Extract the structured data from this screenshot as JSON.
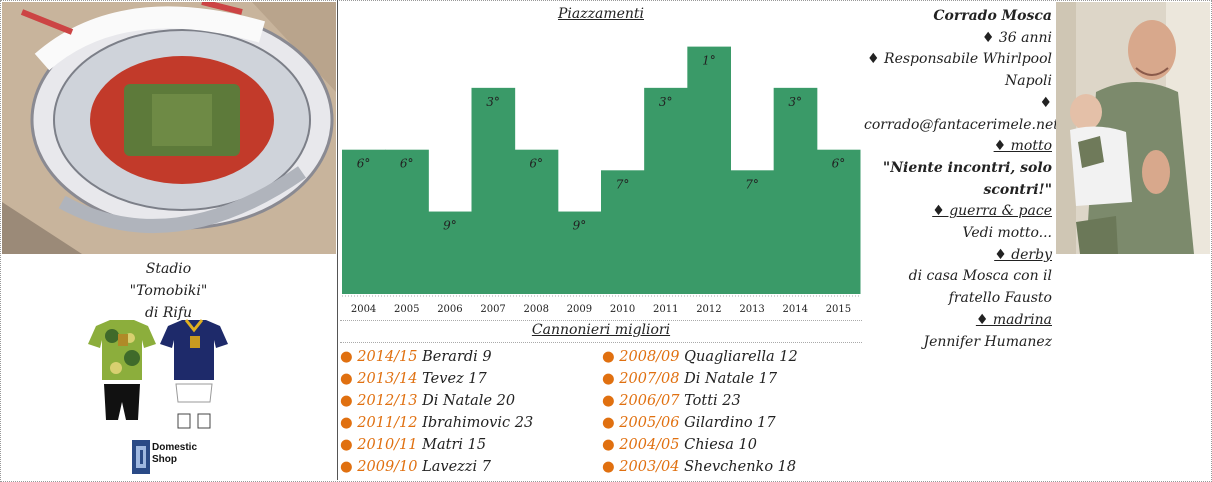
{
  "stadium": {
    "line1": "Stadio",
    "line2": "\"Tomobiki\"",
    "line3": "di Rifu"
  },
  "sponsor": {
    "line1": "Domestic",
    "line2": "Shop"
  },
  "chart_data": {
    "type": "bar",
    "title": "Piazzamenti",
    "categories": [
      "2004",
      "2005",
      "2006",
      "2007",
      "2008",
      "2009",
      "2010",
      "2011",
      "2012",
      "2013",
      "2014",
      "2015"
    ],
    "values": [
      6,
      6,
      9,
      3,
      6,
      9,
      7,
      3,
      1,
      7,
      3,
      6
    ],
    "labels": [
      "6°",
      "6°",
      "9°",
      "3°",
      "6°",
      "9°",
      "7°",
      "3°",
      "1°",
      "7°",
      "3°",
      "6°"
    ],
    "ylim": [
      0,
      13
    ],
    "invert": true,
    "bar_color": "#3a9a68",
    "grid": false
  },
  "scorers": {
    "title": "Cannonieri migliori",
    "left": [
      {
        "season": "2014/15",
        "player": "Berardi 9"
      },
      {
        "season": "2013/14",
        "player": "Tevez 17"
      },
      {
        "season": "2012/13",
        "player": "Di Natale 20"
      },
      {
        "season": "2011/12",
        "player": "Ibrahimovic 23"
      },
      {
        "season": "2010/11",
        "player": "Matri 15"
      },
      {
        "season": "2009/10",
        "player": "Lavezzi 7"
      }
    ],
    "right": [
      {
        "season": "2008/09",
        "player": "Quagliarella 12"
      },
      {
        "season": "2007/08",
        "player": "Di Natale 17"
      },
      {
        "season": "2006/07",
        "player": "Totti 23"
      },
      {
        "season": "2005/06",
        "player": "Gilardino 17"
      },
      {
        "season": "2004/05",
        "player": "Chiesa 10"
      },
      {
        "season": "2003/04",
        "player": "Shevchenko 18"
      }
    ]
  },
  "owner": {
    "name": "Corrado Mosca",
    "age": "♦ 36 anni",
    "job": "♦ Responsabile Whirlpool",
    "city": "Napoli",
    "diamond": "♦",
    "email": "corrado@fantacerimele.net",
    "motto_label": "♦ motto",
    "motto_line1": "\"Niente incontri, solo",
    "motto_line2": "scontri!\"",
    "war_label": "♦ guerra & pace",
    "war_text": "Vedi motto...",
    "derby_label": "♦ derby",
    "derby_line1": "di casa Mosca con il",
    "derby_line2": "fratello Fausto",
    "madrina_label": "♦ madrina",
    "madrina_text": "Jennifer Humanez"
  }
}
